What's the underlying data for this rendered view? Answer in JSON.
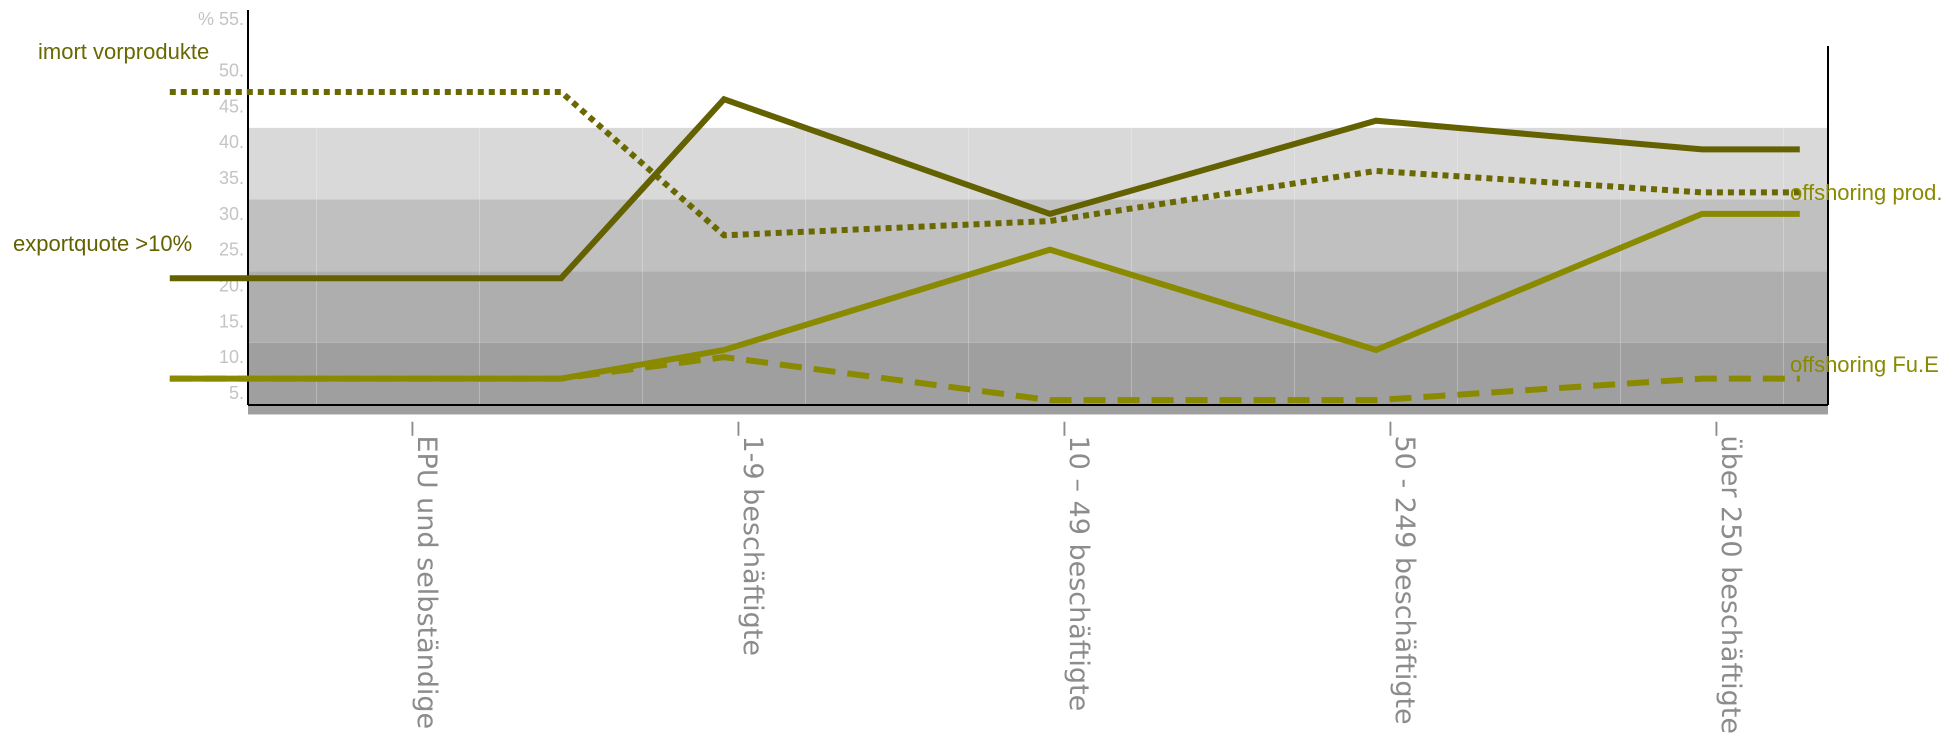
{
  "chart_data": {
    "type": "line",
    "title": "",
    "xlabel": "",
    "ylabel": "",
    "unit_label": "%",
    "ylim": [
      2,
      57
    ],
    "grid": false,
    "categories": [
      "_EPU und selbständige",
      "_1-9 beschäftigte",
      "_10 – 49 beschäftigte",
      "_50 - 249 beschäftigte",
      "_über 250 beschäftigte"
    ],
    "y_ticks": [
      {
        "label": "% 55.",
        "value": 55
      },
      {
        "label": "50.",
        "value": 50
      },
      {
        "label": "45.",
        "value": 45
      },
      {
        "label": "40.",
        "value": 40
      },
      {
        "label": "35.",
        "value": 35
      },
      {
        "label": "30.",
        "value": 30
      },
      {
        "label": "25.",
        "value": 25
      },
      {
        "label": "20.",
        "value": 20
      },
      {
        "label": "15.",
        "value": 15
      },
      {
        "label": "10.",
        "value": 10
      },
      {
        "label": "5.",
        "value": 5
      }
    ],
    "bands": [
      {
        "from": 2,
        "to": 12,
        "color": "#9f9f9f"
      },
      {
        "from": 12,
        "to": 22,
        "color": "#aeaeae"
      },
      {
        "from": 22,
        "to": 32,
        "color": "#c0c0c0"
      },
      {
        "from": 32,
        "to": 42,
        "color": "#d9d9d9"
      }
    ],
    "series": [
      {
        "name": "imort vorprodukte",
        "color": "#6a6800",
        "dash": "dotted",
        "x": [
          -0.7,
          0.5,
          1.0,
          2.0,
          3.0,
          4.0,
          4.3
        ],
        "y": [
          47,
          47,
          27,
          29,
          36,
          33,
          33
        ]
      },
      {
        "name": "exportquote >10%",
        "color": "#636100",
        "dash": "solid",
        "x": [
          -0.7,
          0.5,
          1.0,
          2.0,
          3.0,
          4.0,
          4.3
        ],
        "y": [
          21,
          21,
          46,
          30,
          43,
          39,
          39
        ]
      },
      {
        "name": "offshoring prod.",
        "color": "#8a8a00",
        "dash": "solid",
        "x": [
          -0.7,
          0.5,
          1.0,
          2.0,
          3.0,
          4.0,
          4.3
        ],
        "y": [
          7,
          7,
          11,
          25,
          11,
          30,
          30
        ]
      },
      {
        "name": "offshoring Fu.E",
        "color": "#8a8a00",
        "dash": "dashed",
        "x": [
          -0.7,
          0.5,
          1.0,
          2.0,
          3.0,
          4.0,
          4.3
        ],
        "y": [
          7,
          7,
          10,
          4,
          4,
          7,
          7
        ]
      }
    ]
  }
}
